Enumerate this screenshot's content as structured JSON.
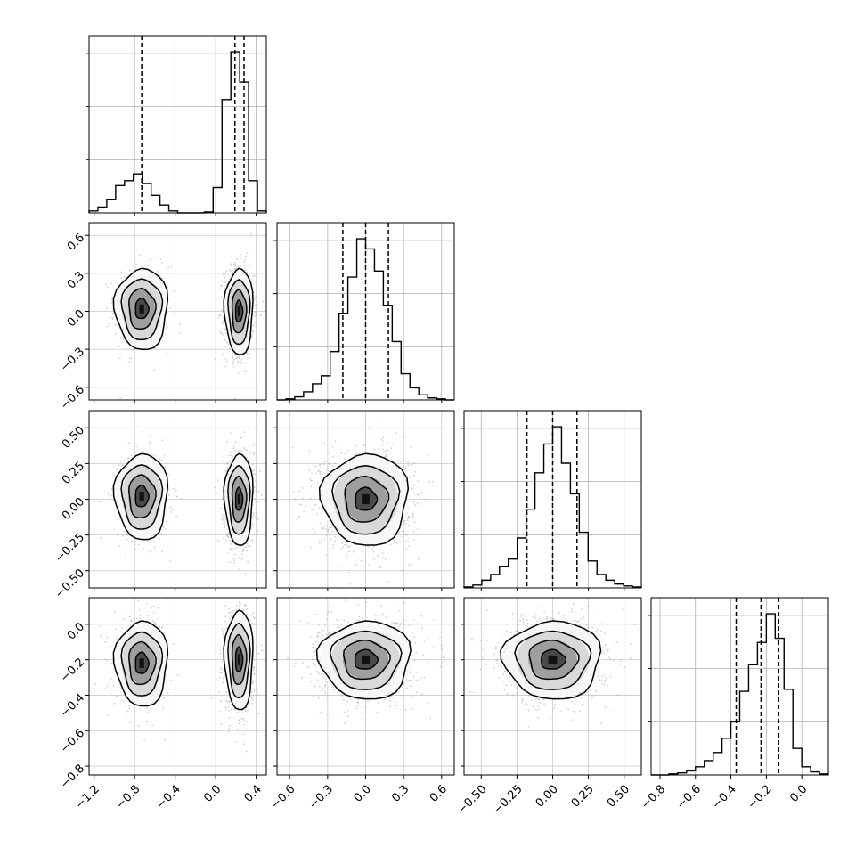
{
  "chart_data": {
    "type": "corner",
    "params": [
      {
        "range": [
          -1.25,
          0.5
        ],
        "ticks": [
          -1.2,
          -0.8,
          -0.4,
          0.0,
          0.4
        ],
        "tick_labels": [
          "−1.2",
          "−0.8",
          "−0.4",
          "0.0",
          "0.4"
        ]
      },
      {
        "range": [
          -0.7,
          0.7
        ],
        "ticks": [
          -0.6,
          -0.3,
          0.0,
          0.3,
          0.6
        ],
        "tick_labels": [
          "−0.6",
          "−0.3",
          "0.0",
          "0.3",
          "0.6"
        ]
      },
      {
        "range": [
          -0.62,
          0.62
        ],
        "ticks": [
          -0.5,
          -0.25,
          0.0,
          0.25,
          0.5
        ],
        "tick_labels": [
          "−0.50",
          "−0.25",
          "0.00",
          "0.25",
          "0.50"
        ]
      },
      {
        "range": [
          -0.85,
          0.15
        ],
        "ticks": [
          -0.8,
          -0.6,
          -0.4,
          -0.2,
          0.0
        ],
        "tick_labels": [
          "−0.8",
          "−0.6",
          "−0.4",
          "−0.2",
          "0.0"
        ]
      }
    ],
    "histograms": [
      {
        "param": 0,
        "edges": [
          -1.25,
          -1.1625,
          -1.075,
          -0.9875,
          -0.9,
          -0.8125,
          -0.725,
          -0.6375,
          -0.55,
          -0.4625,
          -0.375,
          -0.2875,
          -0.2,
          -0.1125,
          -0.025,
          0.0625,
          0.15,
          0.2375,
          0.325,
          0.4125,
          0.5
        ],
        "counts": [
          2,
          6,
          14,
          28,
          33,
          40,
          30,
          18,
          8,
          2,
          0,
          0,
          0,
          1,
          26,
          116,
          165,
          134,
          33,
          2
        ],
        "quantiles": [
          -0.73,
          0.19,
          0.28
        ]
      },
      {
        "param": 1,
        "edges": [
          -0.7,
          -0.63,
          -0.56,
          -0.49,
          -0.42,
          -0.35,
          -0.28,
          -0.21,
          -0.14,
          -0.07,
          0.0,
          0.07,
          0.14,
          0.21,
          0.28,
          0.35,
          0.42,
          0.49,
          0.56,
          0.63,
          0.7
        ],
        "counts": [
          0,
          1,
          3,
          8,
          16,
          24,
          48,
          86,
          122,
          160,
          150,
          128,
          94,
          58,
          26,
          12,
          5,
          2,
          1,
          0
        ],
        "quantiles": [
          -0.18,
          0.0,
          0.18
        ]
      },
      {
        "param": 2,
        "edges": [
          -0.62,
          -0.558,
          -0.496,
          -0.434,
          -0.372,
          -0.31,
          -0.248,
          -0.186,
          -0.124,
          -0.062,
          0.0,
          0.062,
          0.124,
          0.186,
          0.248,
          0.31,
          0.372,
          0.434,
          0.496,
          0.558,
          0.62
        ],
        "counts": [
          1,
          3,
          8,
          14,
          22,
          30,
          52,
          82,
          120,
          150,
          168,
          130,
          98,
          58,
          28,
          14,
          8,
          4,
          2,
          1
        ],
        "quantiles": [
          -0.18,
          0.0,
          0.17
        ]
      },
      {
        "param": 3,
        "edges": [
          -0.85,
          -0.8,
          -0.75,
          -0.7,
          -0.65,
          -0.6,
          -0.55,
          -0.5,
          -0.45,
          -0.4,
          -0.35,
          -0.3,
          -0.25,
          -0.2,
          -0.15,
          -0.1,
          -0.05,
          0.0,
          0.05,
          0.1,
          0.15
        ],
        "counts": [
          0,
          0,
          1,
          2,
          4,
          8,
          14,
          22,
          36,
          52,
          82,
          108,
          130,
          158,
          134,
          84,
          26,
          8,
          3,
          1
        ],
        "quantiles": [
          -0.37,
          -0.23,
          -0.13
        ]
      }
    ],
    "pairs": [
      {
        "x": 0,
        "y": 1,
        "modes": [
          {
            "cx": -0.73,
            "cy": 0.02,
            "sx": 0.13,
            "sy": 0.16,
            "w": 0.33
          },
          {
            "cx": 0.23,
            "cy": 0.0,
            "sx": 0.07,
            "sy": 0.17,
            "w": 0.67
          }
        ]
      },
      {
        "x": 0,
        "y": 2,
        "modes": [
          {
            "cx": -0.73,
            "cy": 0.02,
            "sx": 0.13,
            "sy": 0.15,
            "w": 0.33
          },
          {
            "cx": 0.23,
            "cy": 0.0,
            "sx": 0.07,
            "sy": 0.16,
            "w": 0.67
          }
        ]
      },
      {
        "x": 0,
        "y": 3,
        "modes": [
          {
            "cx": -0.73,
            "cy": -0.22,
            "sx": 0.13,
            "sy": 0.12,
            "w": 0.33
          },
          {
            "cx": 0.23,
            "cy": -0.2,
            "sx": 0.07,
            "sy": 0.14,
            "w": 0.67
          }
        ]
      },
      {
        "x": 1,
        "y": 2,
        "modes": [
          {
            "cx": 0.0,
            "cy": 0.0,
            "sx": 0.17,
            "sy": 0.16,
            "w": 1.0
          }
        ]
      },
      {
        "x": 1,
        "y": 3,
        "modes": [
          {
            "cx": 0.0,
            "cy": -0.2,
            "sx": 0.18,
            "sy": 0.11,
            "w": 1.0
          }
        ]
      },
      {
        "x": 2,
        "y": 3,
        "modes": [
          {
            "cx": 0.0,
            "cy": -0.2,
            "sx": 0.17,
            "sy": 0.11,
            "w": 1.0
          }
        ]
      }
    ],
    "grid": true
  }
}
